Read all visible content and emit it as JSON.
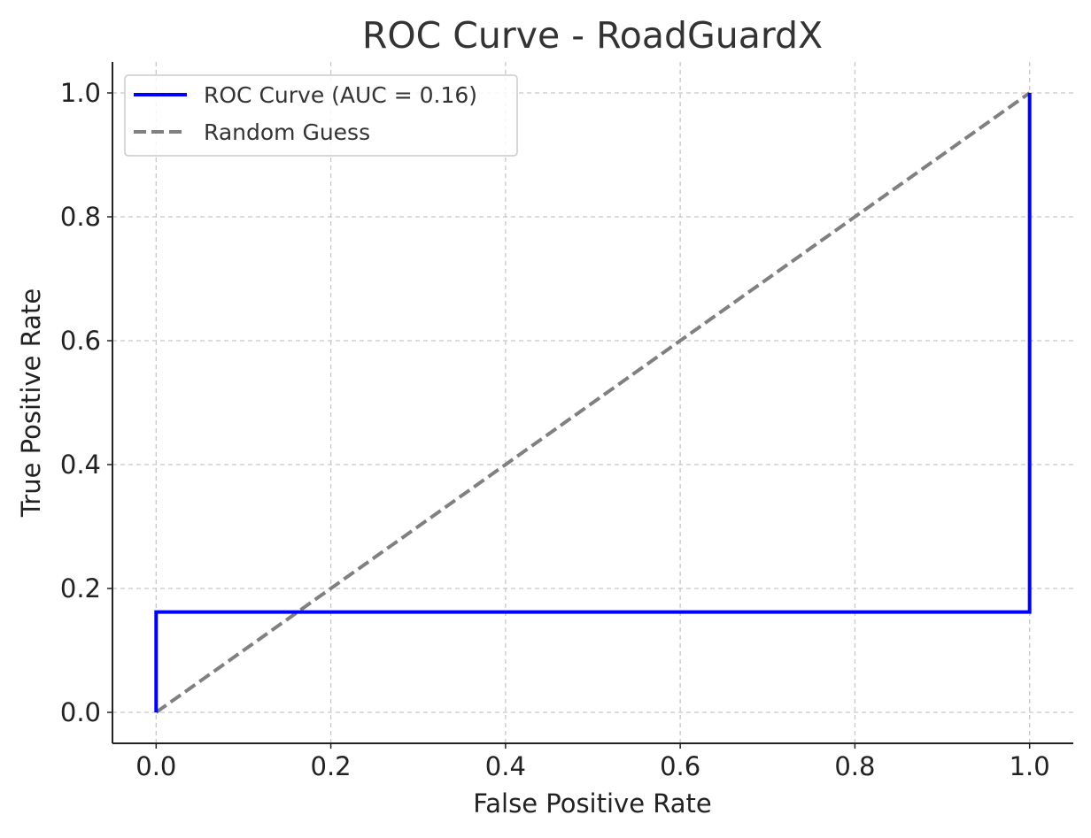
{
  "chart_data": {
    "type": "line",
    "title": "ROC Curve - RoadGuardX",
    "xlabel": "False Positive Rate",
    "ylabel": "True Positive Rate",
    "xlim": [
      -0.05,
      1.05
    ],
    "ylim": [
      -0.05,
      1.05
    ],
    "xticks": [
      0.0,
      0.2,
      0.4,
      0.6,
      0.8,
      1.0
    ],
    "xtick_labels": [
      "0.0",
      "0.2",
      "0.4",
      "0.6",
      "0.8",
      "1.0"
    ],
    "yticks": [
      0.0,
      0.2,
      0.4,
      0.6,
      0.8,
      1.0
    ],
    "ytick_labels": [
      "0.0",
      "0.2",
      "0.4",
      "0.6",
      "0.8",
      "1.0"
    ],
    "grid": true,
    "legend_position": "top-left",
    "series": [
      {
        "name": "ROC Curve (AUC = 0.16)",
        "color": "#0000ff",
        "line_style": "solid",
        "x": [
          0.0,
          0.0,
          1.0,
          1.0
        ],
        "y": [
          0.0,
          0.162,
          0.162,
          1.0
        ]
      },
      {
        "name": "Random Guess",
        "color": "#808080",
        "line_style": "dashed",
        "x": [
          0.0,
          1.0
        ],
        "y": [
          0.0,
          1.0
        ]
      }
    ]
  }
}
